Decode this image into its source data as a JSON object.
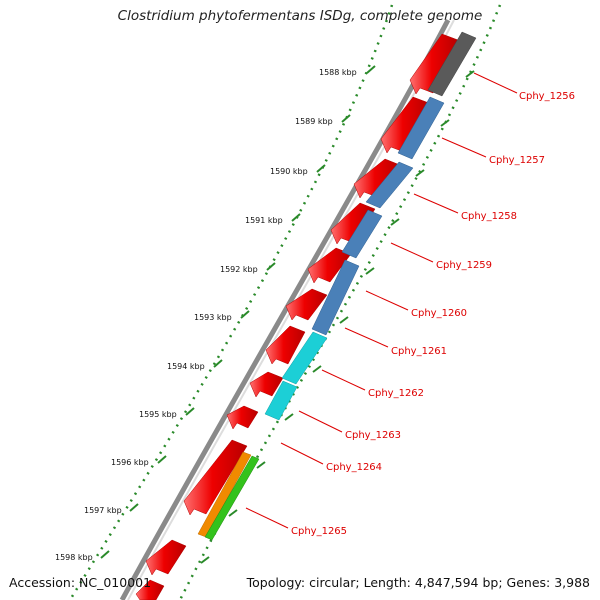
{
  "title": "Clostridium phytofermentans ISDg, complete genome",
  "footer": {
    "accession": "Accession: NC_010001",
    "topology": "Topology: circular; Length: 4,847,594 bp; Genes: 3,988"
  },
  "colors": {
    "forward_cds": "#ee0000",
    "backbone": "#888888",
    "ticks": "#2a8a2a",
    "label_red": "#dd0000",
    "gray_bar": "#5a5a5a",
    "blue_bar": "#4a80b8",
    "cyan_bar": "#1ccfd6",
    "orange_bar": "#f08a00",
    "green_bar": "#33c21c"
  },
  "kbp_labels": [
    "1588 kbp",
    "1589 kbp",
    "1590 kbp",
    "1591 kbp",
    "1592 kbp",
    "1593 kbp",
    "1594 kbp",
    "1595 kbp",
    "1596 kbp",
    "1597 kbp",
    "1598 kbp"
  ],
  "gene_labels": [
    "Cphy_1256",
    "Cphy_1257",
    "Cphy_1258",
    "Cphy_1259",
    "Cphy_1260",
    "Cphy_1261",
    "Cphy_1262",
    "Cphy_1263",
    "Cphy_1264",
    "Cphy_1265"
  ]
}
